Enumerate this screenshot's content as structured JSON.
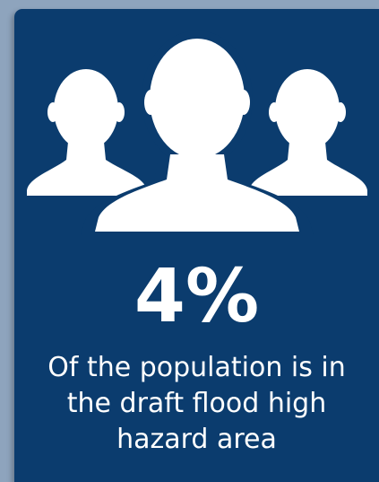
{
  "colors": {
    "page_background": "#8ea4bd",
    "card_background": "#0b3c6e",
    "foreground": "#ffffff"
  },
  "icon": "people-group-icon",
  "stat": {
    "value": "4%",
    "caption_lines": [
      "Of the population is in",
      "the draft flood high",
      "hazard area"
    ]
  }
}
